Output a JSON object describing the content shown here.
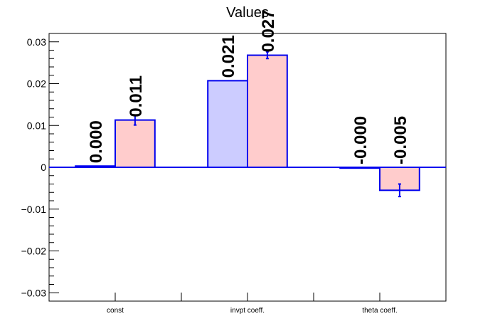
{
  "chart_data": {
    "type": "bar",
    "title": "Values",
    "xlabel": "",
    "ylabel": "",
    "categories": [
      "const",
      "invpt coeff.",
      "theta coeff."
    ],
    "ylim": [
      -0.032,
      0.032
    ],
    "yticks": [
      -0.03,
      -0.02,
      -0.01,
      0,
      0.01,
      0.02,
      0.03
    ],
    "ytick_labels": [
      "−0.03",
      "−0.02",
      "−0.01",
      "0",
      "0.01",
      "0.02",
      "0.03"
    ],
    "grid": false,
    "series": [
      {
        "values": [
          0.0003,
          0.0207,
          -0.0002
        ],
        "errors": [
          0.0,
          0.0,
          0.0
        ],
        "labels": [
          "0.000",
          "0.021",
          "-0.000"
        ],
        "fill": "#ccccff",
        "stroke": "#0000ee"
      },
      {
        "values": [
          0.0113,
          0.0268,
          -0.0055
        ],
        "errors": [
          0.0012,
          0.0008,
          0.0015
        ],
        "labels": [
          "0.011",
          "0.027",
          "-0.005"
        ],
        "fill": "#ffcccc",
        "stroke": "#0000ee"
      }
    ]
  }
}
